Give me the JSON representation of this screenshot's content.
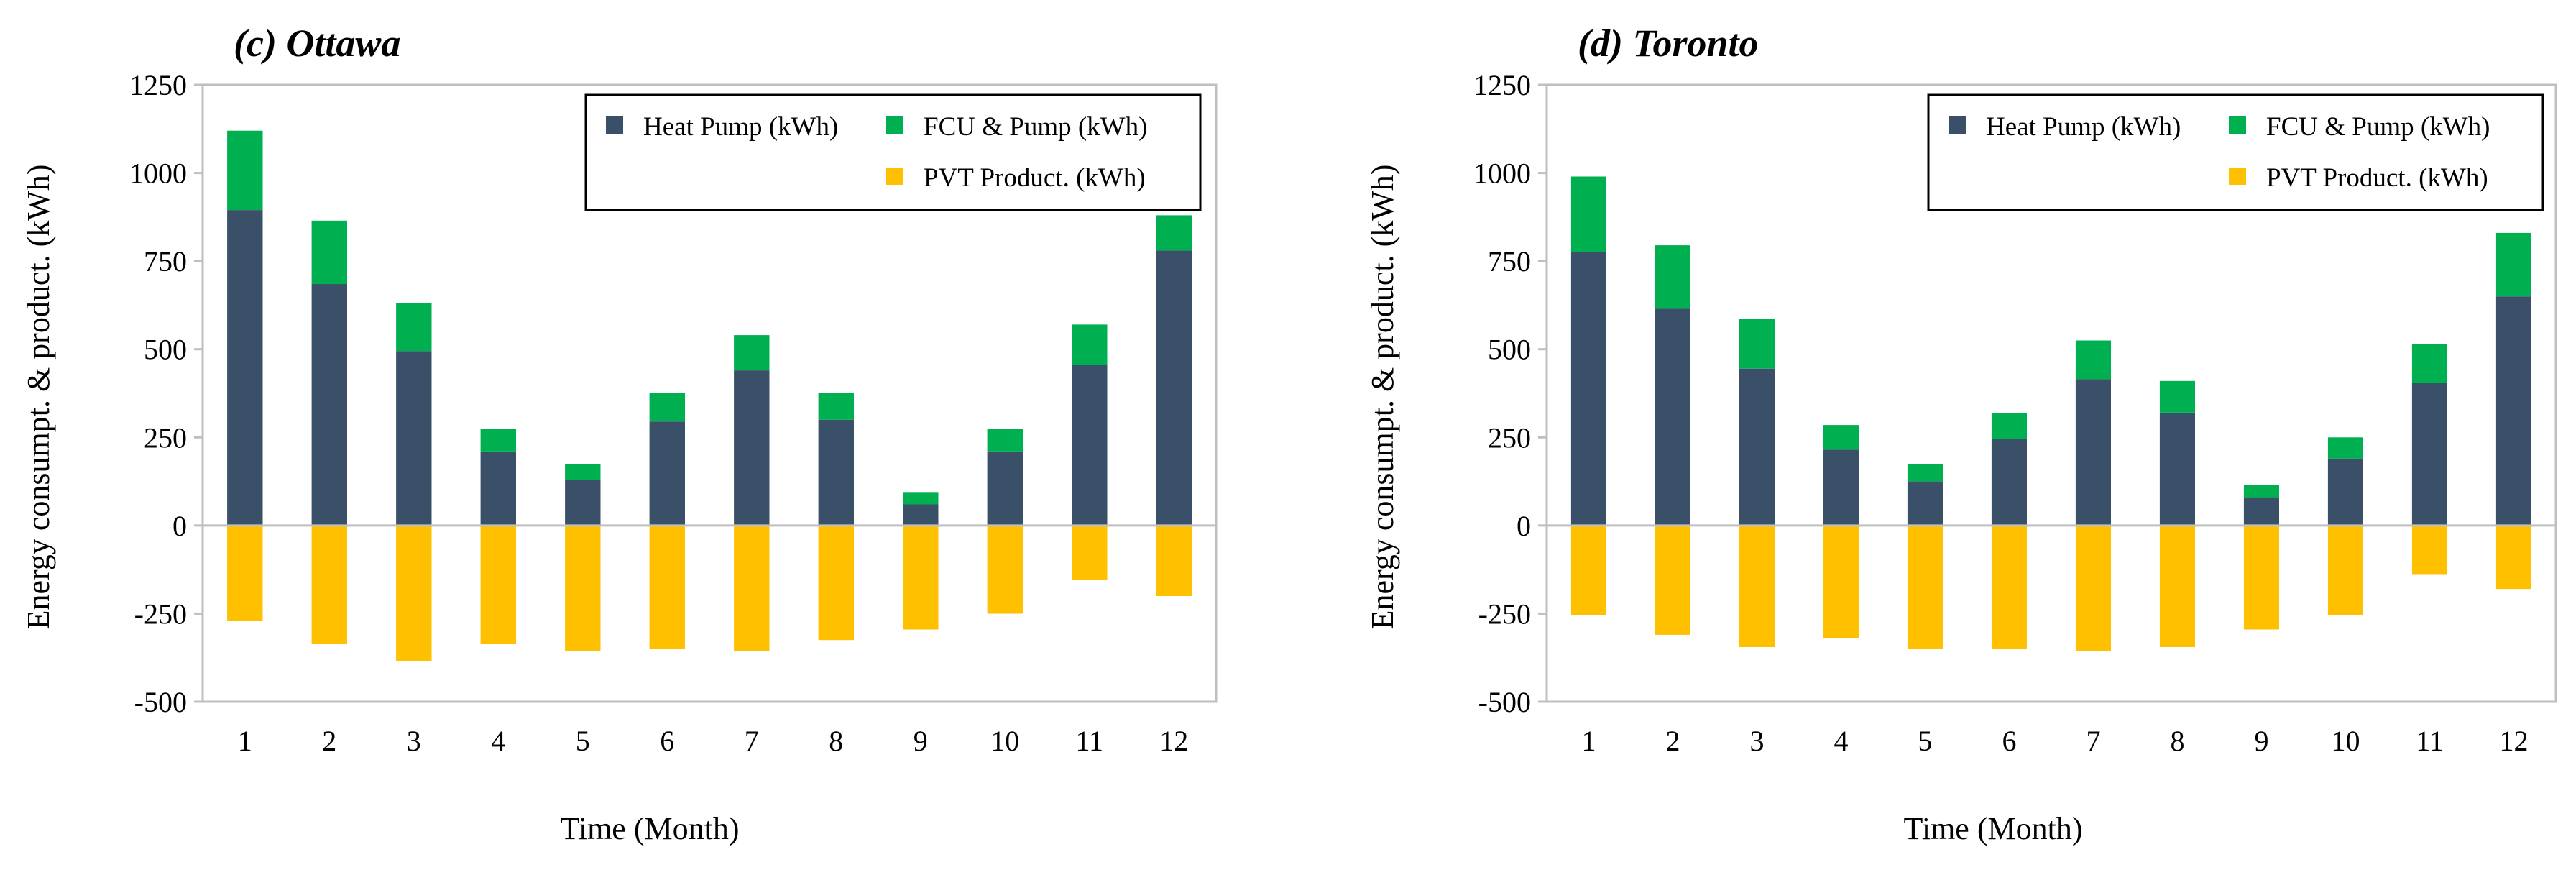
{
  "colors": {
    "heat_pump": "#3A5068",
    "fcu_pump": "#00B050",
    "pvt": "#FFC000",
    "axis": "#BFBFBF"
  },
  "chart_data": [
    {
      "type": "bar",
      "title": "(c) Ottawa",
      "xlabel": "Time (Month)",
      "ylabel": "Energy consumpt. & product. (kWh)",
      "ylim": [
        -500,
        1250
      ],
      "yticks": [
        1250,
        1000,
        750,
        500,
        250,
        0,
        -250,
        -500
      ],
      "yticklabels": [
        "1250",
        "1000",
        "750",
        "500",
        "250",
        "0",
        "-250",
        "-500"
      ],
      "categories": [
        "1",
        "2",
        "3",
        "4",
        "5",
        "6",
        "7",
        "8",
        "9",
        "10",
        "11",
        "12"
      ],
      "stacked": true,
      "series": [
        {
          "name": "Heat Pump (kWh)",
          "color_key": "heat_pump",
          "values": [
            895,
            685,
            495,
            210,
            130,
            295,
            440,
            300,
            60,
            210,
            455,
            780
          ]
        },
        {
          "name": "FCU & Pump (kWh)",
          "color_key": "fcu_pump",
          "values": [
            225,
            180,
            135,
            65,
            45,
            80,
            100,
            75,
            35,
            65,
            115,
            100
          ]
        },
        {
          "name": "PVT Product. (kWh)",
          "color_key": "pvt",
          "values": [
            -270,
            -335,
            -385,
            -335,
            -355,
            -350,
            -355,
            -325,
            -295,
            -250,
            -155,
            -200
          ]
        }
      ]
    },
    {
      "type": "bar",
      "title": "(d) Toronto",
      "xlabel": "Time (Month)",
      "ylabel": "Energy consumpt. & product. (kWh)",
      "ylim": [
        -500,
        1250
      ],
      "yticks": [
        1250,
        1000,
        750,
        500,
        250,
        0,
        -250,
        -500
      ],
      "yticklabels": [
        "1250",
        "1000",
        "750",
        "500",
        "250",
        "0",
        "-250",
        "-500"
      ],
      "categories": [
        "1",
        "2",
        "3",
        "4",
        "5",
        "6",
        "7",
        "8",
        "9",
        "10",
        "11",
        "12"
      ],
      "stacked": true,
      "series": [
        {
          "name": "Heat Pump (kWh)",
          "color_key": "heat_pump",
          "values": [
            775,
            615,
            445,
            215,
            125,
            245,
            415,
            320,
            80,
            190,
            405,
            650
          ]
        },
        {
          "name": "FCU & Pump (kWh)",
          "color_key": "fcu_pump",
          "values": [
            215,
            180,
            140,
            70,
            50,
            75,
            110,
            90,
            35,
            60,
            110,
            180
          ]
        },
        {
          "name": "PVT Product. (kWh)",
          "color_key": "pvt",
          "values": [
            -255,
            -310,
            -345,
            -320,
            -350,
            -350,
            -355,
            -345,
            -295,
            -255,
            -140,
            -180
          ]
        }
      ]
    }
  ]
}
